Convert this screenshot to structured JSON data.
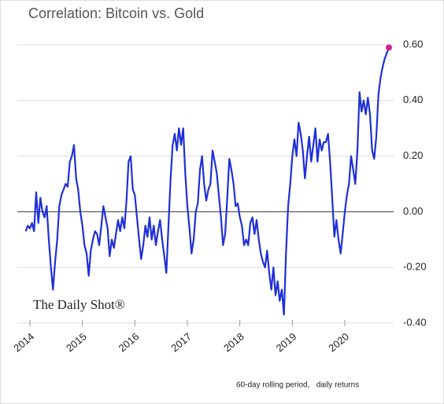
{
  "chart_data": {
    "type": "line",
    "title": "Correlation: Bitcoin vs. Gold",
    "note": "60-day rolling period,   daily returns",
    "watermark": "The Daily Shot®",
    "color": "#1f2fd8",
    "end_marker_color": "#d0238f",
    "grid": true,
    "xlim": [
      2013.76,
      2020.93
    ],
    "xticks": [
      2014,
      2015,
      2016,
      2017,
      2018,
      2019,
      2020
    ],
    "ylim": [
      -0.4,
      0.6
    ],
    "yticks": [
      {
        "value": -0.4,
        "label": "-0.40"
      },
      {
        "value": -0.2,
        "label": "-0.20"
      },
      {
        "value": 0,
        "label": "0.00"
      },
      {
        "value": 0.2,
        "label": "0.20"
      },
      {
        "value": 0.4,
        "label": "0.40"
      },
      {
        "value": 0.6,
        "label": "0.60"
      }
    ],
    "x": [
      2013.92,
      2013.96,
      2014.0,
      2014.04,
      2014.08,
      2014.12,
      2014.16,
      2014.2,
      2014.24,
      2014.28,
      2014.32,
      2014.36,
      2014.4,
      2014.44,
      2014.48,
      2014.52,
      2014.56,
      2014.6,
      2014.64,
      2014.68,
      2014.72,
      2014.76,
      2014.8,
      2014.84,
      2014.88,
      2014.92,
      2014.96,
      2015.0,
      2015.04,
      2015.08,
      2015.12,
      2015.16,
      2015.2,
      2015.24,
      2015.28,
      2015.32,
      2015.36,
      2015.4,
      2015.44,
      2015.48,
      2015.52,
      2015.56,
      2015.6,
      2015.64,
      2015.68,
      2015.72,
      2015.76,
      2015.8,
      2015.84,
      2015.88,
      2015.92,
      2015.96,
      2016.0,
      2016.04,
      2016.08,
      2016.12,
      2016.16,
      2016.2,
      2016.24,
      2016.28,
      2016.32,
      2016.36,
      2016.4,
      2016.44,
      2016.48,
      2016.52,
      2016.56,
      2016.6,
      2016.64,
      2016.68,
      2016.72,
      2016.76,
      2016.8,
      2016.84,
      2016.88,
      2016.92,
      2016.96,
      2017.0,
      2017.04,
      2017.08,
      2017.12,
      2017.16,
      2017.2,
      2017.24,
      2017.28,
      2017.32,
      2017.36,
      2017.4,
      2017.44,
      2017.48,
      2017.52,
      2017.56,
      2017.6,
      2017.64,
      2017.68,
      2017.72,
      2017.76,
      2017.8,
      2017.84,
      2017.88,
      2017.92,
      2017.96,
      2018.0,
      2018.04,
      2018.08,
      2018.12,
      2018.16,
      2018.2,
      2018.24,
      2018.28,
      2018.32,
      2018.36,
      2018.4,
      2018.44,
      2018.48,
      2018.52,
      2018.56,
      2018.6,
      2018.64,
      2018.68,
      2018.72,
      2018.76,
      2018.8,
      2018.84,
      2018.88,
      2018.92,
      2018.96,
      2019.0,
      2019.04,
      2019.08,
      2019.12,
      2019.16,
      2019.2,
      2019.24,
      2019.28,
      2019.32,
      2019.36,
      2019.4,
      2019.44,
      2019.48,
      2019.52,
      2019.56,
      2019.6,
      2019.64,
      2019.68,
      2019.72,
      2019.76,
      2019.8,
      2019.84,
      2019.88,
      2019.92,
      2019.96,
      2020.0,
      2020.04,
      2020.08,
      2020.12,
      2020.16,
      2020.2,
      2020.24,
      2020.28,
      2020.32,
      2020.36,
      2020.4,
      2020.44,
      2020.48,
      2020.52,
      2020.56,
      2020.6,
      2020.64,
      2020.68,
      2020.72,
      2020.76,
      2020.8,
      2020.84
    ],
    "values": [
      -0.07,
      -0.05,
      -0.06,
      -0.04,
      -0.07,
      0.07,
      -0.04,
      0.05,
      0.0,
      -0.02,
      0.02,
      -0.1,
      -0.2,
      -0.28,
      -0.18,
      -0.1,
      0.02,
      0.06,
      0.08,
      0.1,
      0.09,
      0.18,
      0.2,
      0.24,
      0.12,
      0.08,
      0.0,
      -0.05,
      -0.12,
      -0.15,
      -0.23,
      -0.14,
      -0.1,
      -0.07,
      -0.08,
      -0.12,
      -0.05,
      0.02,
      -0.02,
      -0.06,
      -0.16,
      -0.1,
      -0.13,
      -0.08,
      -0.03,
      -0.07,
      -0.02,
      -0.06,
      0.04,
      0.18,
      0.2,
      0.08,
      0.06,
      -0.02,
      -0.1,
      -0.17,
      -0.12,
      -0.05,
      -0.09,
      -0.02,
      -0.1,
      -0.05,
      -0.12,
      -0.07,
      -0.03,
      -0.1,
      -0.16,
      -0.22,
      -0.05,
      0.12,
      0.24,
      0.28,
      0.22,
      0.3,
      0.24,
      0.3,
      0.14,
      0.02,
      -0.06,
      -0.15,
      -0.1,
      0.0,
      0.03,
      0.15,
      0.2,
      0.1,
      0.04,
      0.08,
      0.1,
      0.22,
      0.18,
      0.14,
      0.06,
      -0.02,
      -0.12,
      -0.08,
      0.05,
      0.19,
      0.15,
      0.1,
      0.02,
      0.03,
      -0.02,
      -0.05,
      -0.12,
      -0.1,
      -0.12,
      -0.04,
      -0.02,
      -0.08,
      -0.03,
      -0.1,
      -0.15,
      -0.18,
      -0.2,
      -0.14,
      -0.22,
      -0.28,
      -0.2,
      -0.3,
      -0.25,
      -0.32,
      -0.28,
      -0.37,
      -0.15,
      0.02,
      0.1,
      0.2,
      0.26,
      0.2,
      0.32,
      0.28,
      0.22,
      0.12,
      0.2,
      0.27,
      0.18,
      0.24,
      0.3,
      0.18,
      0.26,
      0.22,
      0.25,
      0.25,
      0.28,
      0.18,
      0.05,
      -0.09,
      -0.03,
      -0.1,
      -0.15,
      -0.08,
      0.0,
      0.06,
      0.1,
      0.2,
      0.15,
      0.1,
      0.22,
      0.43,
      0.36,
      0.4,
      0.35,
      0.41,
      0.35,
      0.22,
      0.19,
      0.27,
      0.42,
      0.48,
      0.52,
      0.55,
      0.57,
      0.59
    ]
  }
}
